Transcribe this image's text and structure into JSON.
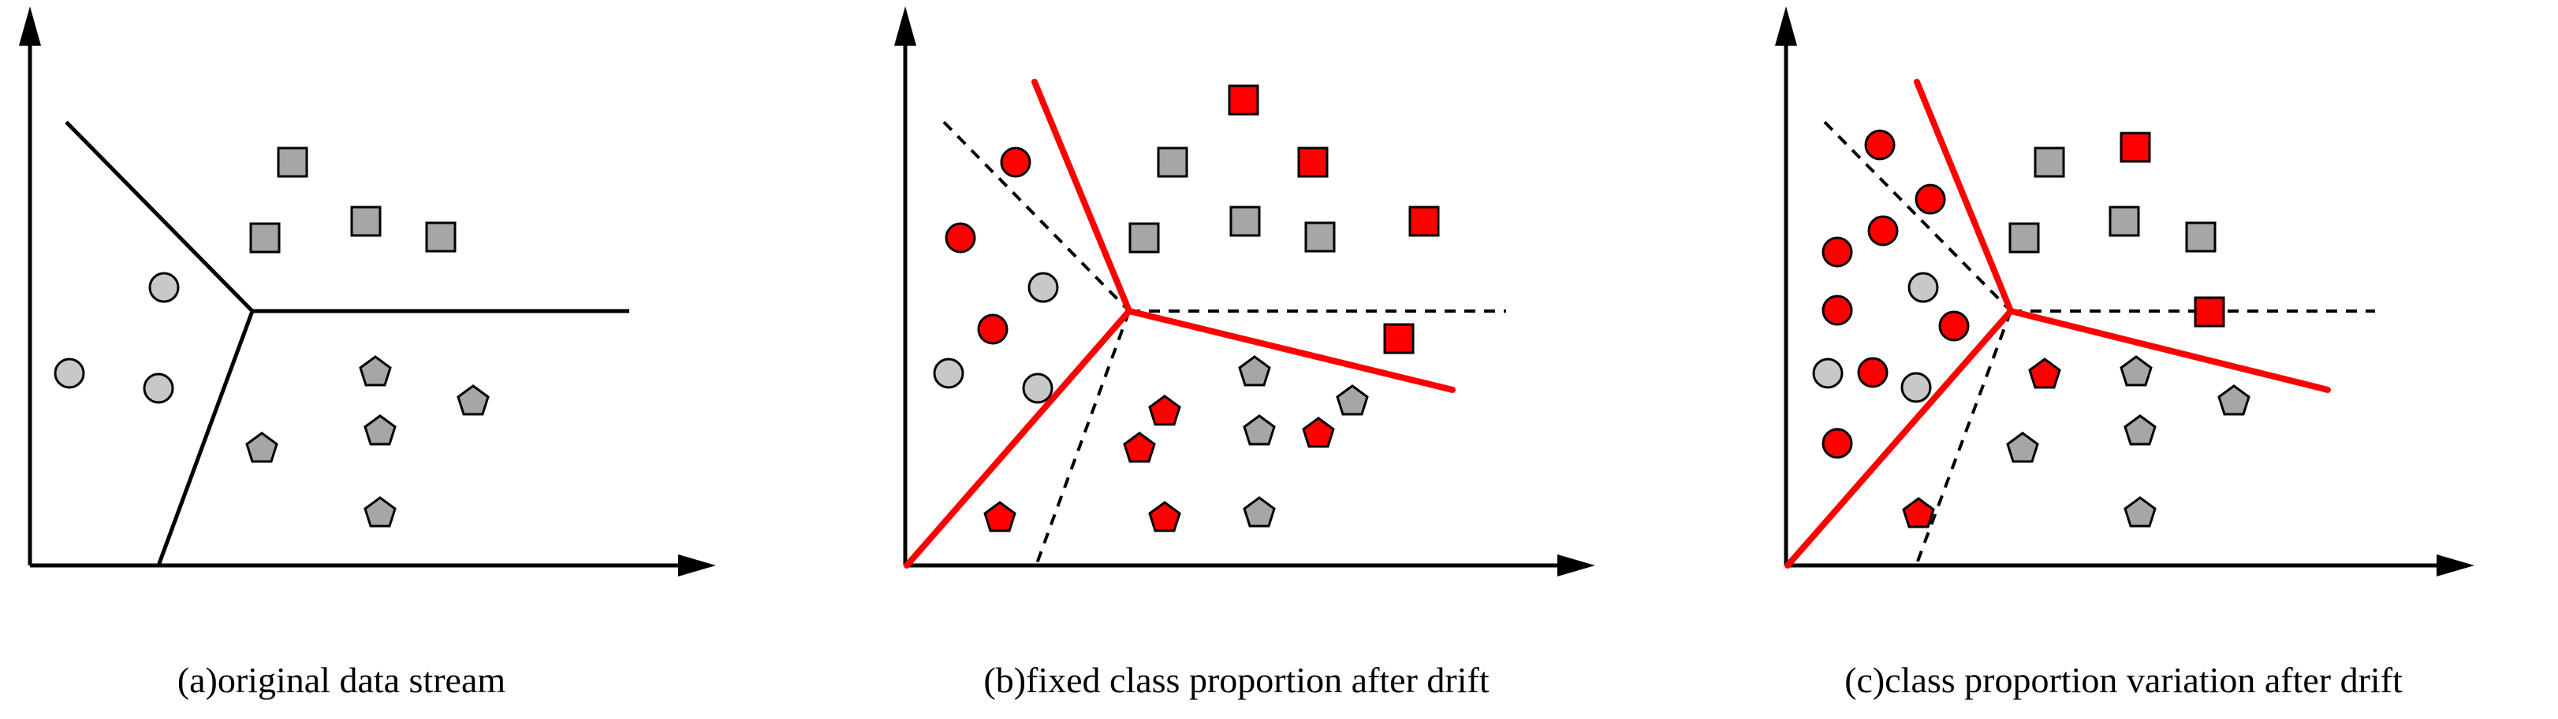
{
  "colors": {
    "gray_fill": "#a6a6a6",
    "circle_fill": "#c8c8c8",
    "red": "#ff0000",
    "axis": "#000000",
    "boundary_black": "#000000",
    "boundary_red": "#ff0000"
  },
  "panels": [
    {
      "caption": "(a)original data stream",
      "boundaries": [
        {
          "style": "black-solid"
        }
      ],
      "points": {
        "squares": [
          [
            "gray"
          ],
          [
            "gray"
          ],
          [
            "gray"
          ],
          [
            "gray"
          ]
        ],
        "circles": [
          [
            "gray"
          ],
          [
            "gray"
          ],
          [
            "gray"
          ]
        ],
        "pentagons": [
          [
            "gray"
          ],
          [
            "gray"
          ],
          [
            "gray"
          ],
          [
            "gray"
          ],
          [
            "gray"
          ]
        ]
      }
    },
    {
      "caption": "(b)fixed class proportion after drift",
      "boundaries": [
        {
          "style": "black-dashed"
        },
        {
          "style": "red-solid"
        }
      ],
      "points": {
        "squares": [
          "red",
          "gray",
          "red",
          "gray",
          "gray",
          "gray",
          "red",
          "red"
        ],
        "circles": [
          "red",
          "red",
          "gray",
          "red",
          "gray",
          "gray"
        ],
        "pentagons": [
          "gray",
          "red",
          "gray",
          "gray",
          "red",
          "red",
          "red",
          "red",
          "gray"
        ]
      }
    },
    {
      "caption": "(c)class proportion variation after drift",
      "boundaries": [
        {
          "style": "black-dashed"
        },
        {
          "style": "red-solid"
        }
      ],
      "points": {
        "squares": [
          "red",
          "gray",
          "gray",
          "gray",
          "gray",
          "red"
        ],
        "circles": [
          "red",
          "red",
          "red",
          "red",
          "gray",
          "red",
          "red",
          "gray",
          "gray",
          "red",
          "red"
        ],
        "pentagons": [
          "red",
          "gray",
          "gray",
          "gray",
          "gray",
          "gray",
          "red",
          "gray"
        ]
      }
    }
  ]
}
